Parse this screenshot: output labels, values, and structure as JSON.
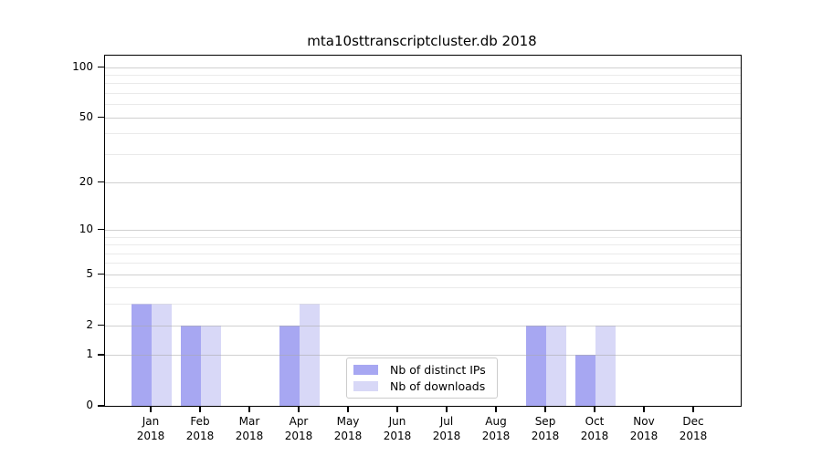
{
  "title": "mta10sttranscriptcluster.db 2018",
  "chart_data": {
    "type": "bar",
    "categories": [
      "Jan",
      "Feb",
      "Mar",
      "Apr",
      "May",
      "Jun",
      "Jul",
      "Aug",
      "Sep",
      "Oct",
      "Nov",
      "Dec"
    ],
    "year_label": "2018",
    "series": [
      {
        "name": "Nb of distinct IPs",
        "color": "#a7a7f2",
        "values": [
          3,
          2,
          0,
          2,
          0,
          0,
          0,
          0,
          2,
          1,
          0,
          0
        ]
      },
      {
        "name": "Nb of downloads",
        "color": "#d8d8f7",
        "values": [
          3,
          2,
          0,
          3,
          0,
          0,
          0,
          0,
          2,
          2,
          0,
          0
        ]
      }
    ],
    "yscale": "log1p",
    "ylim": [
      0,
      117
    ],
    "y_major_ticks": [
      0,
      1,
      2,
      5,
      10,
      20,
      50,
      100
    ],
    "y_minor_ticks": [
      3,
      4,
      6,
      7,
      8,
      9,
      30,
      40,
      60,
      70,
      80,
      90
    ],
    "grid": "on",
    "grid_above_bars": true,
    "legend_position": "lower center",
    "colors": {
      "major_grid": "#a9a9a9",
      "minor_grid": "#d8d8d8",
      "spine": "#000000",
      "background": "#ffffff"
    }
  }
}
